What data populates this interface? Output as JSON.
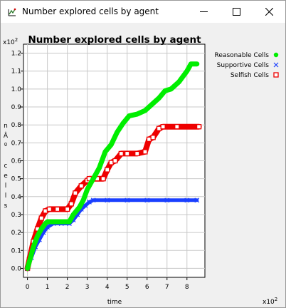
{
  "window": {
    "title": "Number explored cells by agent",
    "icons": {
      "app": "chart-app-icon",
      "minimize": "minimize-icon",
      "maximize": "maximize-icon",
      "close": "close-icon"
    }
  },
  "chart_data": {
    "type": "line",
    "title": "Number explored cells by agent",
    "xlabel": "time",
    "ylabel": "nº cells",
    "ylabel_glyphs": [
      "n",
      "Â",
      "º",
      "",
      "c",
      "e",
      "l",
      "l",
      "s"
    ],
    "x_multiplier": "x10",
    "x_multiplier_exp": "2",
    "y_multiplier": "x10",
    "y_multiplier_exp": "2",
    "xlim": [
      -0.2,
      8.9
    ],
    "ylim": [
      -0.05,
      1.25
    ],
    "x_ticks": [
      0,
      1,
      2,
      3,
      4,
      5,
      6,
      7,
      8
    ],
    "x_tick_labels": [
      "0",
      "1",
      "2",
      "3",
      "4",
      "5",
      "6",
      "7",
      "8"
    ],
    "y_ticks": [
      0.0,
      0.1,
      0.2,
      0.3,
      0.4,
      0.5,
      0.6,
      0.7,
      0.8,
      0.9,
      1.0,
      1.1,
      1.2
    ],
    "y_tick_labels": [
      "0.0",
      "0.1",
      "0.2",
      "0.3",
      "0.4",
      "0.5",
      "0.6",
      "0.7",
      "0.8",
      "0.9",
      "1.0",
      "1.1",
      "1.2"
    ],
    "grid": true,
    "legend_position": "top-right outside",
    "series": [
      {
        "name": "Reasonable Cells",
        "color": "#00ee00",
        "marker": "dot",
        "points": [
          [
            0,
            0
          ],
          [
            0.1,
            0.04
          ],
          [
            0.3,
            0.12
          ],
          [
            0.5,
            0.18
          ],
          [
            0.7,
            0.22
          ],
          [
            0.9,
            0.25
          ],
          [
            1.0,
            0.26
          ],
          [
            1.2,
            0.26
          ],
          [
            1.6,
            0.26
          ],
          [
            2.1,
            0.26
          ],
          [
            2.3,
            0.3
          ],
          [
            2.6,
            0.34
          ],
          [
            2.8,
            0.38
          ],
          [
            3.0,
            0.44
          ],
          [
            3.3,
            0.5
          ],
          [
            3.6,
            0.56
          ],
          [
            3.9,
            0.65
          ],
          [
            4.2,
            0.69
          ],
          [
            4.5,
            0.76
          ],
          [
            4.8,
            0.81
          ],
          [
            5.1,
            0.85
          ],
          [
            5.5,
            0.86
          ],
          [
            5.9,
            0.88
          ],
          [
            6.3,
            0.92
          ],
          [
            6.6,
            0.95
          ],
          [
            6.9,
            0.99
          ],
          [
            7.2,
            1.0
          ],
          [
            7.6,
            1.04
          ],
          [
            8.0,
            1.1
          ],
          [
            8.2,
            1.14
          ],
          [
            8.5,
            1.14
          ]
        ]
      },
      {
        "name": "Supportive Cells",
        "color": "#1a3fff",
        "marker": "x",
        "points": [
          [
            0,
            0
          ],
          [
            0.2,
            0.06
          ],
          [
            0.4,
            0.12
          ],
          [
            0.6,
            0.16
          ],
          [
            0.8,
            0.2
          ],
          [
            1.0,
            0.23
          ],
          [
            1.3,
            0.25
          ],
          [
            1.7,
            0.25
          ],
          [
            2.1,
            0.25
          ],
          [
            2.3,
            0.27
          ],
          [
            2.5,
            0.3
          ],
          [
            2.7,
            0.33
          ],
          [
            2.9,
            0.35
          ],
          [
            3.1,
            0.37
          ],
          [
            3.3,
            0.38
          ],
          [
            4.0,
            0.38
          ],
          [
            5.0,
            0.38
          ],
          [
            6.0,
            0.38
          ],
          [
            7.0,
            0.38
          ],
          [
            8.0,
            0.38
          ],
          [
            8.5,
            0.38
          ]
        ]
      },
      {
        "name": "Selfish Cells",
        "color": "#ee0000",
        "marker": "square",
        "points": [
          [
            0,
            0
          ],
          [
            0.1,
            0.05
          ],
          [
            0.3,
            0.15
          ],
          [
            0.5,
            0.22
          ],
          [
            0.7,
            0.28
          ],
          [
            0.9,
            0.32
          ],
          [
            1.1,
            0.33
          ],
          [
            1.5,
            0.33
          ],
          [
            2.0,
            0.33
          ],
          [
            2.2,
            0.36
          ],
          [
            2.4,
            0.42
          ],
          [
            2.7,
            0.46
          ],
          [
            3.0,
            0.49
          ],
          [
            3.1,
            0.5
          ],
          [
            3.5,
            0.5
          ],
          [
            3.8,
            0.5
          ],
          [
            4.0,
            0.55
          ],
          [
            4.2,
            0.59
          ],
          [
            4.4,
            0.6
          ],
          [
            4.7,
            0.64
          ],
          [
            5.0,
            0.64
          ],
          [
            5.5,
            0.64
          ],
          [
            5.9,
            0.65
          ],
          [
            6.1,
            0.72
          ],
          [
            6.3,
            0.73
          ],
          [
            6.6,
            0.78
          ],
          [
            6.8,
            0.79
          ],
          [
            7.5,
            0.79
          ],
          [
            8.6,
            0.79
          ]
        ]
      }
    ]
  }
}
